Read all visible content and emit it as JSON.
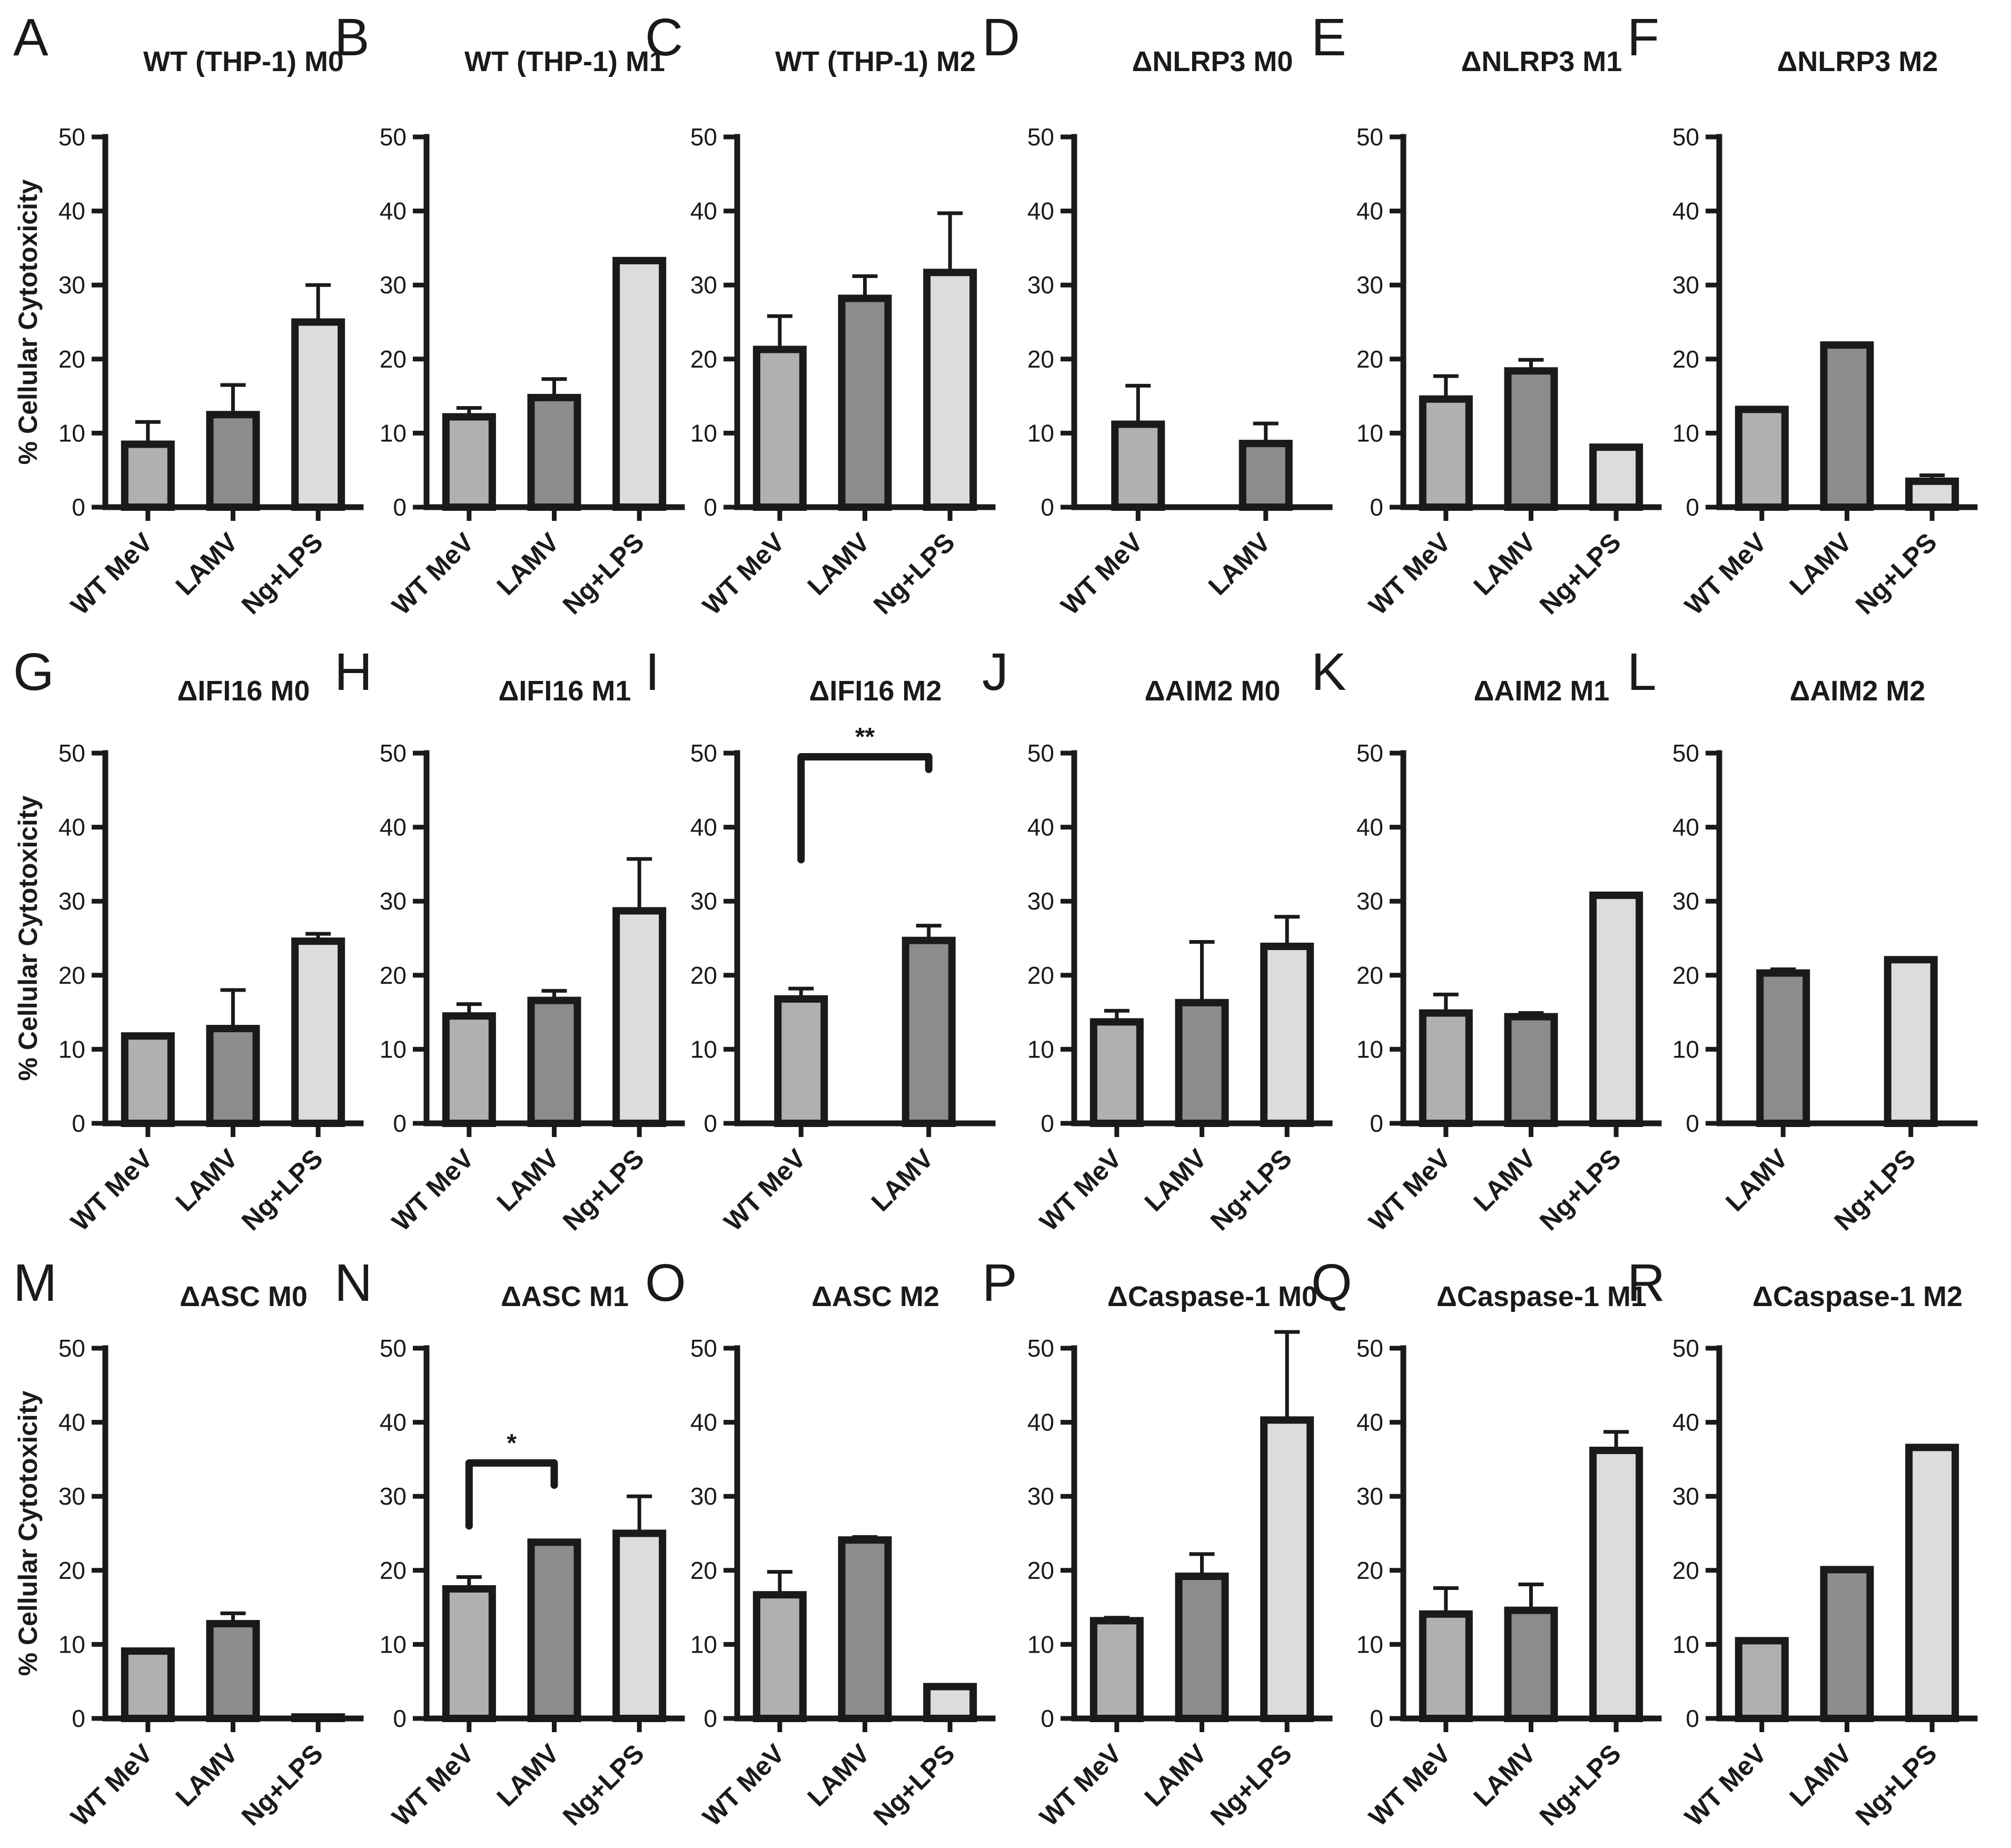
{
  "figure": {
    "y_label": "% Cellular Cytotoxicity",
    "colors": {
      "WT MeV": "#b0b0b0",
      "LAMV": "#8c8c8c",
      "Ng+LPS": "#dcdcdc",
      "axis": "#1a1a1a"
    }
  },
  "chart_data": [
    {
      "type": "bar",
      "letter": "A",
      "title": "WT (THP-1) M0",
      "ylabel": "% Cellular Cytotoxicity",
      "ylim": [
        0,
        50
      ],
      "yticks": [
        0,
        10,
        20,
        30,
        40,
        50
      ],
      "categories": [
        "WT MeV",
        "LAMV",
        "Ng+LPS"
      ],
      "values": [
        8.5,
        12.5,
        25.0
      ],
      "errors": [
        3.0,
        4.0,
        5.0
      ],
      "significance": []
    },
    {
      "type": "bar",
      "letter": "B",
      "title": "WT (THP-1) M1",
      "ylabel": "% Cellular Cytotoxicity",
      "ylim": [
        0,
        50
      ],
      "yticks": [
        0,
        10,
        20,
        30,
        40,
        50
      ],
      "categories": [
        "WT MeV",
        "LAMV",
        "Ng+LPS"
      ],
      "values": [
        12.2,
        14.8,
        33.3
      ],
      "errors": [
        1.2,
        2.5,
        0.2
      ],
      "significance": []
    },
    {
      "type": "bar",
      "letter": "C",
      "title": "WT (THP-1) M2",
      "ylabel": "% Cellular Cytotoxicity",
      "ylim": [
        0,
        50
      ],
      "yticks": [
        0,
        10,
        20,
        30,
        40,
        50
      ],
      "categories": [
        "WT MeV",
        "LAMV",
        "Ng+LPS"
      ],
      "values": [
        21.3,
        28.2,
        31.7
      ],
      "errors": [
        4.5,
        3.0,
        8.0
      ],
      "significance": []
    },
    {
      "type": "bar",
      "letter": "D",
      "title": "ΔNLRP3 M0",
      "ylabel": "% Cellular Cytotoxicity",
      "ylim": [
        0,
        50
      ],
      "yticks": [
        0,
        10,
        20,
        30,
        40,
        50
      ],
      "categories": [
        "WT MeV",
        "LAMV"
      ],
      "values": [
        11.2,
        8.6
      ],
      "errors": [
        5.2,
        2.7
      ],
      "significance": []
    },
    {
      "type": "bar",
      "letter": "E",
      "title": "ΔNLRP3 M1",
      "ylabel": "% Cellular Cytotoxicity",
      "ylim": [
        0,
        50
      ],
      "yticks": [
        0,
        10,
        20,
        30,
        40,
        50
      ],
      "categories": [
        "WT MeV",
        "LAMV",
        "Ng+LPS"
      ],
      "values": [
        14.6,
        18.4,
        8.1
      ],
      "errors": [
        3.1,
        1.5,
        0.2
      ],
      "significance": []
    },
    {
      "type": "bar",
      "letter": "F",
      "title": "ΔNLRP3 M2",
      "ylabel": "% Cellular Cytotoxicity",
      "ylim": [
        0,
        50
      ],
      "yticks": [
        0,
        10,
        20,
        30,
        40,
        50
      ],
      "categories": [
        "WT MeV",
        "LAMV",
        "Ng+LPS"
      ],
      "values": [
        13.2,
        21.9,
        3.5
      ],
      "errors": [
        0,
        0,
        0.8
      ],
      "significance": []
    },
    {
      "type": "bar",
      "letter": "G",
      "title": "ΔIFI16 M0",
      "ylabel": "% Cellular Cytotoxicity",
      "ylim": [
        0,
        50
      ],
      "yticks": [
        0,
        10,
        20,
        30,
        40,
        50
      ],
      "categories": [
        "WT MeV",
        "LAMV",
        "Ng+LPS"
      ],
      "values": [
        11.8,
        12.8,
        24.6
      ],
      "errors": [
        0,
        5.2,
        1.0
      ],
      "significance": []
    },
    {
      "type": "bar",
      "letter": "H",
      "title": "ΔIFI16 M1",
      "ylabel": "% Cellular Cytotoxicity",
      "ylim": [
        0,
        50
      ],
      "yticks": [
        0,
        10,
        20,
        30,
        40,
        50
      ],
      "categories": [
        "WT MeV",
        "LAMV",
        "Ng+LPS"
      ],
      "values": [
        14.5,
        16.6,
        28.7
      ],
      "errors": [
        1.6,
        1.3,
        7.0
      ],
      "significance": []
    },
    {
      "type": "bar",
      "letter": "I",
      "title": "ΔIFI16 M2",
      "ylabel": "% Cellular Cytotoxicity",
      "ylim": [
        0,
        50
      ],
      "yticks": [
        0,
        10,
        20,
        30,
        40,
        50
      ],
      "categories": [
        "WT MeV",
        "LAMV"
      ],
      "values": [
        16.8,
        24.7
      ],
      "errors": [
        1.4,
        2.0
      ],
      "significance": [
        {
          "from": 0,
          "to": 1,
          "label": "**",
          "y": 49.5,
          "left_drop": 35.6,
          "right_drop": 47.8
        }
      ]
    },
    {
      "type": "bar",
      "letter": "J",
      "title": "ΔAIM2 M0",
      "ylabel": "% Cellular Cytotoxicity",
      "ylim": [
        0,
        50
      ],
      "yticks": [
        0,
        10,
        20,
        30,
        40,
        50
      ],
      "categories": [
        "WT MeV",
        "LAMV",
        "Ng+LPS"
      ],
      "values": [
        13.7,
        16.3,
        23.9
      ],
      "errors": [
        1.5,
        8.2,
        4.0
      ],
      "significance": []
    },
    {
      "type": "bar",
      "letter": "K",
      "title": "ΔAIM2 M1",
      "ylabel": "% Cellular Cytotoxicity",
      "ylim": [
        0,
        50
      ],
      "yticks": [
        0,
        10,
        20,
        30,
        40,
        50
      ],
      "categories": [
        "WT MeV",
        "LAMV",
        "Ng+LPS"
      ],
      "values": [
        14.9,
        14.4,
        30.8
      ],
      "errors": [
        2.5,
        0.5,
        0
      ],
      "significance": []
    },
    {
      "type": "bar",
      "letter": "L",
      "title": "ΔAIM2 M2",
      "ylabel": "% Cellular Cytotoxicity",
      "ylim": [
        0,
        50
      ],
      "yticks": [
        0,
        10,
        20,
        30,
        40,
        50
      ],
      "categories": [
        "LAMV",
        "Ng+LPS"
      ],
      "values": [
        20.3,
        22.1
      ],
      "errors": [
        0.5,
        0
      ],
      "significance": []
    },
    {
      "type": "bar",
      "letter": "M",
      "title": "ΔASC M0",
      "ylabel": "% Cellular Cytotoxicity",
      "ylim": [
        0,
        50
      ],
      "yticks": [
        0,
        10,
        20,
        30,
        40,
        50
      ],
      "categories": [
        "WT MeV",
        "LAMV",
        "Ng+LPS"
      ],
      "values": [
        9.1,
        12.8,
        0.2
      ],
      "errors": [
        0,
        1.4,
        0
      ],
      "significance": []
    },
    {
      "type": "bar",
      "letter": "N",
      "title": "ΔASC M1",
      "ylabel": "% Cellular Cytotoxicity",
      "ylim": [
        0,
        50
      ],
      "yticks": [
        0,
        10,
        20,
        30,
        40,
        50
      ],
      "categories": [
        "WT MeV",
        "LAMV",
        "Ng+LPS"
      ],
      "values": [
        17.5,
        23.8,
        25.0
      ],
      "errors": [
        1.6,
        0.2,
        5.0
      ],
      "significance": [
        {
          "from": 0,
          "to": 1,
          "label": "*",
          "y": 34.5,
          "left_drop": 26.0,
          "right_drop": 31.5
        }
      ]
    },
    {
      "type": "bar",
      "letter": "O",
      "title": "ΔASC M2",
      "ylabel": "% Cellular Cytotoxicity",
      "ylim": [
        0,
        50
      ],
      "yticks": [
        0,
        10,
        20,
        30,
        40,
        50
      ],
      "categories": [
        "WT MeV",
        "LAMV",
        "Ng+LPS"
      ],
      "values": [
        16.7,
        24.1,
        4.3
      ],
      "errors": [
        3.1,
        0.4,
        0.2
      ],
      "significance": []
    },
    {
      "type": "bar",
      "letter": "P",
      "title": "ΔCaspase-1 M0",
      "ylabel": "% Cellular Cytotoxicity",
      "ylim": [
        0,
        50
      ],
      "yticks": [
        0,
        10,
        20,
        30,
        40,
        50
      ],
      "categories": [
        "WT MeV",
        "LAMV",
        "Ng+LPS"
      ],
      "values": [
        13.2,
        19.2,
        40.3
      ],
      "errors": [
        0.4,
        3.0,
        11.9
      ],
      "significance": []
    },
    {
      "type": "bar",
      "letter": "Q",
      "title": "ΔCaspase-1 M1",
      "ylabel": "% Cellular Cytotoxicity",
      "ylim": [
        0,
        50
      ],
      "yticks": [
        0,
        10,
        20,
        30,
        40,
        50
      ],
      "categories": [
        "WT MeV",
        "LAMV",
        "Ng+LPS"
      ],
      "values": [
        14.1,
        14.6,
        36.2
      ],
      "errors": [
        3.5,
        3.5,
        2.5
      ],
      "significance": []
    },
    {
      "type": "bar",
      "letter": "R",
      "title": "ΔCaspase-1 M2",
      "ylabel": "% Cellular Cytotoxicity",
      "ylim": [
        0,
        50
      ],
      "yticks": [
        0,
        10,
        20,
        30,
        40,
        50
      ],
      "categories": [
        "WT MeV",
        "LAMV",
        "Ng+LPS"
      ],
      "values": [
        10.5,
        20.1,
        36.6
      ],
      "errors": [
        0,
        0,
        0
      ],
      "significance": []
    }
  ]
}
